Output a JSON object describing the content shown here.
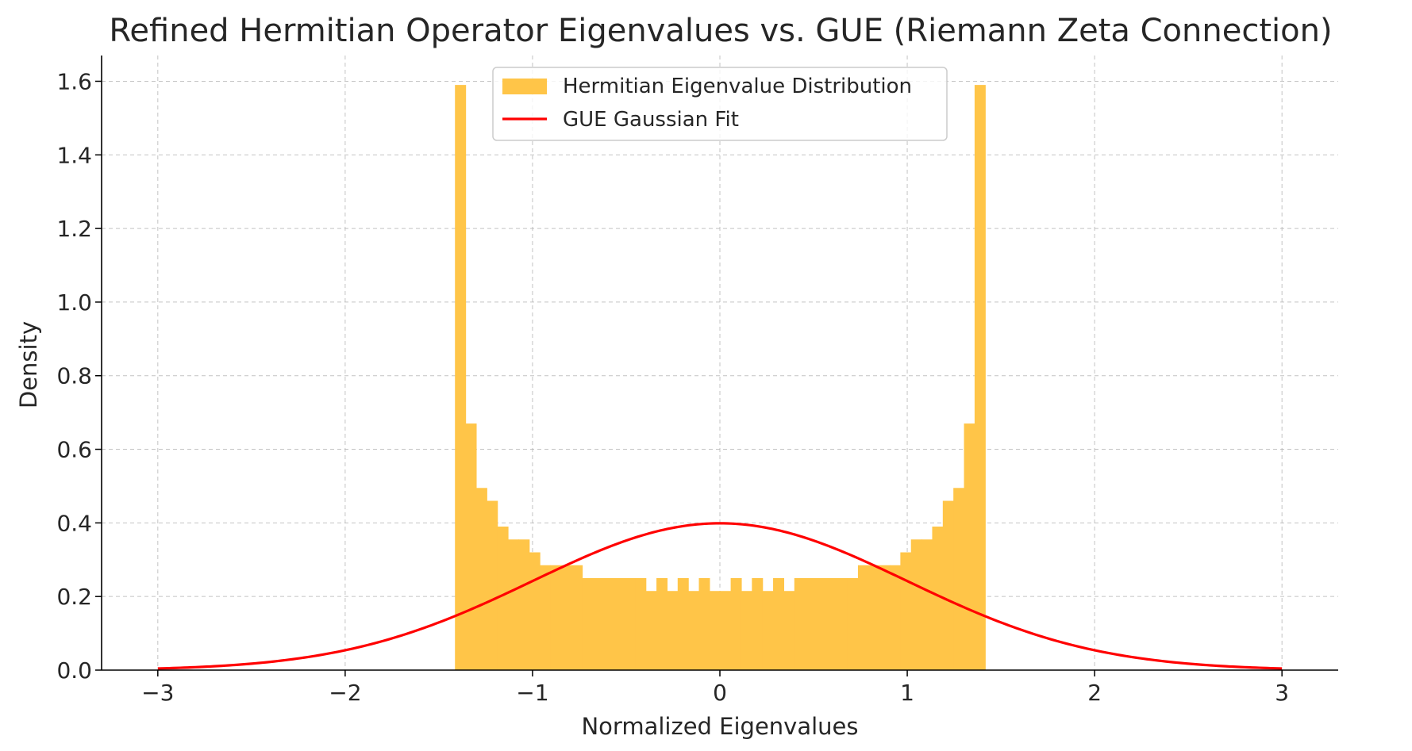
{
  "chart_data": {
    "type": "bar",
    "title": "Refined Hermitian Operator Eigenvalues vs. GUE (Riemann Zeta Connection)",
    "xlabel": "Normalized Eigenvalues",
    "ylabel": "Density",
    "xlim": [
      -3.3,
      3.3
    ],
    "ylim": [
      0,
      1.67
    ],
    "xticks": [
      -3,
      -2,
      -1,
      0,
      1,
      2,
      3
    ],
    "xtick_labels": [
      "−3",
      "−2",
      "−1",
      "0",
      "1",
      "2",
      "3"
    ],
    "yticks": [
      0.0,
      0.2,
      0.4,
      0.6,
      0.8,
      1.0,
      1.2,
      1.4,
      1.6
    ],
    "ytick_labels": [
      "0.0",
      "0.2",
      "0.4",
      "0.6",
      "0.8",
      "1.0",
      "1.2",
      "1.4",
      "1.6"
    ],
    "grid": true,
    "legend_position": "upper center",
    "legend": [
      {
        "label": "Hermitian Eigenvalue Distribution",
        "kind": "patch",
        "color": "#FFC548"
      },
      {
        "label": "GUE Gaussian Fit",
        "kind": "line",
        "color": "#FF0000"
      }
    ],
    "series": [
      {
        "name": "Hermitian Eigenvalue Distribution",
        "kind": "histogram",
        "color": "#FFC548",
        "bin_edges": [
          -1.414,
          -1.3574,
          -1.3008,
          -1.2442,
          -1.1876,
          -1.131,
          -1.0744,
          -1.0178,
          -0.9612,
          -0.9046,
          -0.848,
          -0.7914,
          -0.7348,
          -0.6782,
          -0.6216,
          -0.565,
          -0.5084,
          -0.4518,
          -0.3952,
          -0.3386,
          -0.282,
          -0.2254,
          -0.1688,
          -0.1122,
          -0.0556,
          0.001,
          0.0576,
          0.1142,
          0.1708,
          0.2274,
          0.284,
          0.3406,
          0.3972,
          0.4538,
          0.5104,
          0.567,
          0.6236,
          0.6802,
          0.7368,
          0.7934,
          0.85,
          0.9066,
          0.9632,
          1.0198,
          1.0764,
          1.133,
          1.1896,
          1.2462,
          1.3028,
          1.3594,
          1.416
        ],
        "values": [
          1.59,
          0.67,
          0.495,
          0.46,
          0.39,
          0.355,
          0.355,
          0.32,
          0.285,
          0.285,
          0.285,
          0.285,
          0.25,
          0.25,
          0.25,
          0.25,
          0.25,
          0.25,
          0.215,
          0.25,
          0.215,
          0.25,
          0.215,
          0.25,
          0.215,
          0.215,
          0.25,
          0.215,
          0.25,
          0.215,
          0.25,
          0.215,
          0.25,
          0.25,
          0.25,
          0.25,
          0.25,
          0.25,
          0.285,
          0.285,
          0.285,
          0.285,
          0.32,
          0.355,
          0.355,
          0.39,
          0.46,
          0.495,
          0.67,
          1.59
        ]
      },
      {
        "name": "GUE Gaussian Fit",
        "kind": "line",
        "color": "#FF0000",
        "function": "standard normal pdf",
        "mean": 0,
        "std": 1,
        "x_range": [
          -3,
          3
        ]
      }
    ]
  }
}
